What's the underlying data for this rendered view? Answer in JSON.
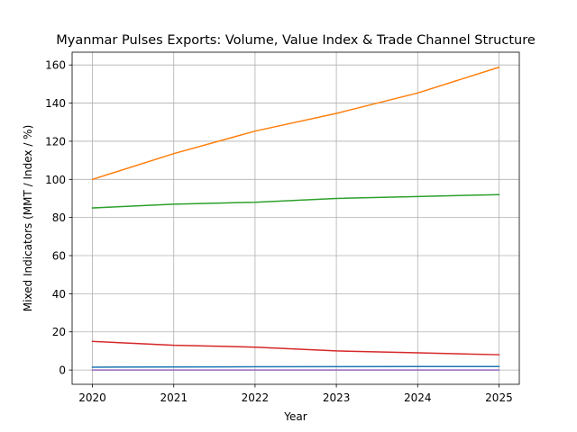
{
  "chart_data": {
    "type": "line",
    "title": "Myanmar Pulses Exports: Volume, Value Index & Trade Channel Structure",
    "xlabel": "Year",
    "ylabel": "Mixed Indicators (MMT / Index / %)",
    "x": [
      2020,
      2021,
      2022,
      2023,
      2024,
      2025
    ],
    "xticks": [
      "2020",
      "2021",
      "2022",
      "2023",
      "2024",
      "2025"
    ],
    "yticks": [
      "0",
      "20",
      "40",
      "60",
      "80",
      "100",
      "120",
      "140",
      "160"
    ],
    "ylim": [
      -7.5,
      166.7
    ],
    "xlim": [
      2019.75,
      2025.25
    ],
    "grid": true,
    "series": [
      {
        "name": "series-1",
        "color": "#1f77b4",
        "values": [
          1.5,
          1.6,
          1.7,
          1.75,
          1.8,
          1.85
        ]
      },
      {
        "name": "series-2",
        "color": "#ff7f0e",
        "values": [
          100,
          113.5,
          125.3,
          134.6,
          145.3,
          158.8
        ]
      },
      {
        "name": "series-3",
        "color": "#2ca02c",
        "values": [
          85,
          87,
          88,
          90,
          91,
          92
        ]
      },
      {
        "name": "series-4",
        "color": "#d62728",
        "values": [
          15,
          13,
          12,
          10,
          9,
          8
        ]
      },
      {
        "name": "series-5",
        "color": "#9467bd",
        "values": [
          0,
          0,
          0,
          0,
          0,
          0
        ]
      }
    ]
  }
}
